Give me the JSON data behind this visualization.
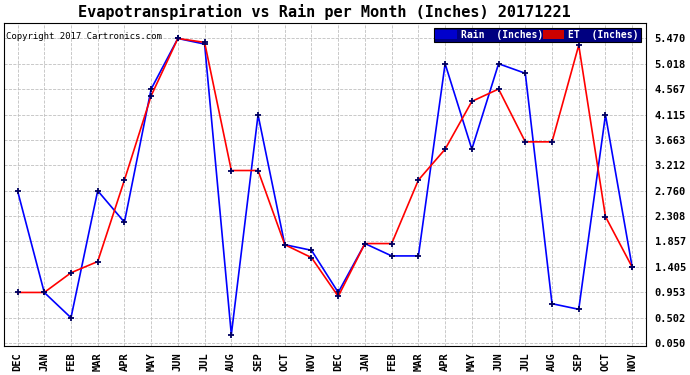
{
  "title": "Evapotranspiration vs Rain per Month (Inches) 20171221",
  "copyright": "Copyright 2017 Cartronics.com",
  "x_labels": [
    "DEC",
    "JAN",
    "FEB",
    "MAR",
    "APR",
    "MAY",
    "JUN",
    "JUL",
    "AUG",
    "SEP",
    "OCT",
    "NOV",
    "DEC",
    "JAN",
    "FEB",
    "MAR",
    "APR",
    "MAY",
    "JUN",
    "JUL",
    "AUG",
    "SEP",
    "OCT",
    "NOV"
  ],
  "rain_values": [
    2.76,
    0.95,
    0.5,
    2.76,
    2.2,
    4.57,
    5.47,
    5.37,
    0.2,
    4.11,
    1.8,
    1.7,
    0.95,
    1.82,
    1.6,
    1.6,
    5.02,
    3.5,
    5.02,
    4.85,
    0.75,
    0.65,
    4.11,
    1.4
  ],
  "et_values": [
    0.95,
    0.95,
    1.3,
    1.5,
    2.95,
    4.45,
    5.47,
    5.4,
    3.12,
    3.12,
    1.8,
    1.57,
    0.88,
    1.82,
    1.82,
    2.95,
    3.5,
    4.35,
    4.57,
    3.63,
    3.63,
    5.35,
    2.3,
    1.4
  ],
  "yticks": [
    0.05,
    0.502,
    0.953,
    1.405,
    1.857,
    2.308,
    2.76,
    3.212,
    3.663,
    4.115,
    4.567,
    5.018,
    5.47
  ],
  "rain_color": "#0000ff",
  "et_color": "#ff0000",
  "marker_color": "#000060",
  "bg_color": "#ffffff",
  "grid_color": "#c0c0c0",
  "title_fontsize": 11,
  "tick_fontsize": 7.5,
  "copyright_fontsize": 6.5,
  "legend_rain_label": "Rain  (Inches)",
  "legend_et_label": "ET  (Inches)",
  "legend_rain_bg": "#0000cc",
  "legend_et_bg": "#cc0000"
}
